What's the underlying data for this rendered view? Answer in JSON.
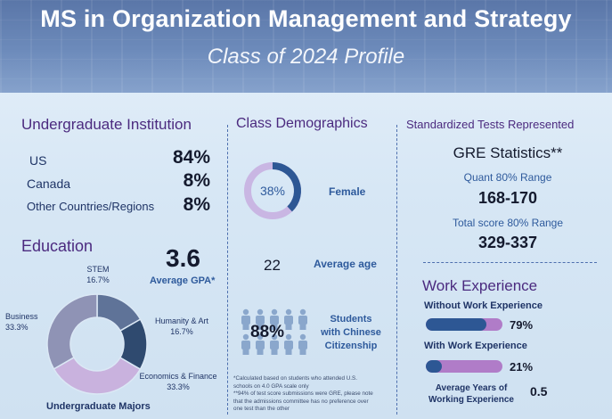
{
  "header": {
    "title": "MS in Organization Management and Strategy",
    "subtitle": "Class of 2024 Profile"
  },
  "undergrad": {
    "title": "Undergraduate Institution",
    "rows": [
      {
        "label": "US",
        "value": "84%"
      },
      {
        "label": "Canada",
        "value": "8%"
      },
      {
        "label": "Other Countries/Regions",
        "value": "8%"
      }
    ]
  },
  "education": {
    "title": "Education",
    "gpa_value": "3.6",
    "gpa_label": "Average GPA*",
    "majors_title": "Undergraduate Majors",
    "majors": [
      {
        "name": "STEM",
        "pct": "16.7%",
        "value": 16.7,
        "color": "#5f7398"
      },
      {
        "name": "Humanity & Art",
        "pct": "16.7%",
        "value": 16.7,
        "color": "#2f4a6f"
      },
      {
        "name": "Economics & Finance",
        "pct": "33.3%",
        "value": 33.3,
        "color": "#c9b2de"
      },
      {
        "name": "Business",
        "pct": "33.3%",
        "value": 33.3,
        "color": "#8f93b5"
      }
    ]
  },
  "demographics": {
    "title": "Class Demographics",
    "female_pct": "38%",
    "female_value": 38,
    "female_label": "Female",
    "age_value": "22",
    "age_label": "Average age",
    "chinese_pct": "88%",
    "chinese_label_1": "Students",
    "chinese_label_2": "with Chinese",
    "chinese_label_3": "Citizenship",
    "footnote_1": "*Calculated based on students who attended U.S.",
    "footnote_2": "schools on 4.0 GPA scale only",
    "footnote_3": "**94% of test score submissions were GRE, please note",
    "footnote_4": "that the admissions committee has no preference over",
    "footnote_5": "one test than the other"
  },
  "tests": {
    "title": "Standardized Tests Represented",
    "gre_title": "GRE Statistics**",
    "quant_label": "Quant 80% Range",
    "quant_value": "168-170",
    "total_label": "Total score 80% Range",
    "total_value": "329-337"
  },
  "work": {
    "title": "Work Experience",
    "without_label": "Without Work Experience",
    "without_pct": "79%",
    "without_value": 79,
    "with_label": "With Work Experience",
    "with_pct": "21%",
    "with_value": 21,
    "years_label_1": "Average Years of",
    "years_label_2": "Working Experience",
    "years_value": "0.5"
  },
  "colors": {
    "purple": "#4b2a7f",
    "navy": "#1f3466",
    "accent_blue": "#2d5794",
    "accent_purple": "#b07cc8"
  }
}
